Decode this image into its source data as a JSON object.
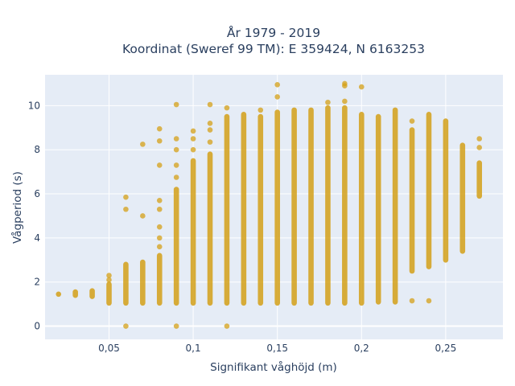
{
  "chart_data": {
    "type": "scatter",
    "title_line1": "År 1979 - 2019",
    "title_line2": "Koordinat (Sweref 99 TM): E 359424, N 6163253",
    "xlabel": "Signifikant våghöjd (m)",
    "ylabel": "Vågperiod (s)",
    "xlim": [
      0.012,
      0.284
    ],
    "ylim": [
      -0.6,
      11.4
    ],
    "xticks": [
      0.05,
      0.1,
      0.15,
      0.2,
      0.25
    ],
    "xtick_labels": [
      "0,05",
      "0,1",
      "0,15",
      "0,2",
      "0,25"
    ],
    "yticks": [
      0,
      2,
      4,
      6,
      8,
      10
    ],
    "ytick_labels": [
      "0",
      "2",
      "4",
      "6",
      "8",
      "10"
    ],
    "grid": true,
    "marker_color": "#D4A017",
    "plot_background": "#E5ECF6",
    "columns": [
      {
        "x": 0.02,
        "runs": [
          [
            1.45,
            1.45
          ]
        ]
      },
      {
        "x": 0.03,
        "runs": [
          [
            1.4,
            1.55
          ]
        ]
      },
      {
        "x": 0.04,
        "runs": [
          [
            1.35,
            1.6
          ]
        ]
      },
      {
        "x": 0.05,
        "runs": [
          [
            1.05,
            1.9
          ]
        ],
        "points": [
          2.1,
          2.3
        ]
      },
      {
        "x": 0.06,
        "runs": [
          [
            1.05,
            2.8
          ]
        ],
        "points": [
          0,
          5.3,
          5.85
        ]
      },
      {
        "x": 0.07,
        "runs": [
          [
            1.05,
            2.9
          ]
        ],
        "points": [
          5.0,
          8.25
        ]
      },
      {
        "x": 0.08,
        "runs": [
          [
            1.05,
            3.2
          ]
        ],
        "points": [
          3.6,
          4.0,
          4.5,
          5.3,
          5.7,
          7.3,
          8.4,
          8.95
        ]
      },
      {
        "x": 0.09,
        "runs": [
          [
            1.05,
            6.2
          ]
        ],
        "points": [
          0,
          6.75,
          7.3,
          8.0,
          8.5,
          10.05
        ]
      },
      {
        "x": 0.1,
        "runs": [
          [
            1.05,
            7.5
          ]
        ],
        "points": [
          8.0,
          8.5,
          8.85
        ]
      },
      {
        "x": 0.11,
        "runs": [
          [
            1.05,
            7.8
          ]
        ],
        "points": [
          8.35,
          8.9,
          9.2,
          10.05
        ]
      },
      {
        "x": 0.12,
        "runs": [
          [
            1.05,
            9.5
          ]
        ],
        "points": [
          0,
          9.9
        ]
      },
      {
        "x": 0.13,
        "runs": [
          [
            1.05,
            9.6
          ]
        ]
      },
      {
        "x": 0.14,
        "runs": [
          [
            1.05,
            9.5
          ]
        ],
        "points": [
          9.8
        ]
      },
      {
        "x": 0.15,
        "runs": [
          [
            1.05,
            9.7
          ]
        ],
        "points": [
          10.4,
          10.95
        ]
      },
      {
        "x": 0.16,
        "runs": [
          [
            1.05,
            9.8
          ]
        ]
      },
      {
        "x": 0.17,
        "runs": [
          [
            1.05,
            9.8
          ]
        ]
      },
      {
        "x": 0.18,
        "runs": [
          [
            1.05,
            9.9
          ]
        ],
        "points": [
          10.15
        ]
      },
      {
        "x": 0.19,
        "runs": [
          [
            1.05,
            9.9
          ]
        ],
        "points": [
          10.2,
          10.9,
          11.0
        ]
      },
      {
        "x": 0.2,
        "runs": [
          [
            1.05,
            9.6
          ]
        ],
        "points": [
          10.85
        ]
      },
      {
        "x": 0.21,
        "runs": [
          [
            1.1,
            9.5
          ]
        ]
      },
      {
        "x": 0.22,
        "runs": [
          [
            1.1,
            9.8
          ]
        ]
      },
      {
        "x": 0.23,
        "runs": [
          [
            2.5,
            8.9
          ]
        ],
        "points": [
          1.15,
          9.3
        ]
      },
      {
        "x": 0.24,
        "runs": [
          [
            2.7,
            9.6
          ]
        ],
        "points": [
          1.15
        ]
      },
      {
        "x": 0.25,
        "runs": [
          [
            3.0,
            9.3
          ]
        ]
      },
      {
        "x": 0.26,
        "runs": [
          [
            3.4,
            8.2
          ]
        ]
      },
      {
        "x": 0.27,
        "runs": [
          [
            5.9,
            7.4
          ]
        ],
        "points": [
          8.1,
          8.5
        ]
      }
    ]
  }
}
